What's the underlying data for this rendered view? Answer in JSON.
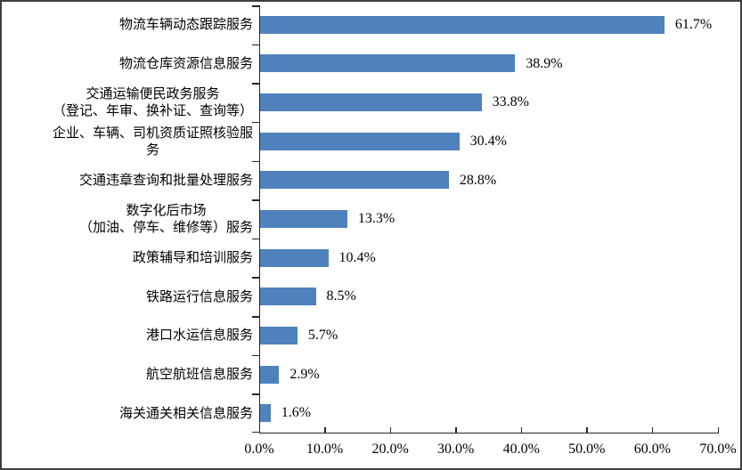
{
  "chart_data": {
    "type": "bar",
    "orientation": "horizontal",
    "title": "",
    "categories": [
      "物流车辆动态跟踪服务",
      "物流仓库资源信息服务",
      "交通运输便民政务服务\n（登记、年审、换补证、查询等）",
      "企业、车辆、司机资质证照核验服\n务",
      "交通违章查询和批量处理服务",
      "数字化后市场\n（加油、停车、维修等）服务",
      "政策辅导和培训服务",
      "铁路运行信息服务",
      "港口水运信息服务",
      "航空航班信息服务",
      "海关通关相关信息服务"
    ],
    "values": [
      61.7,
      38.9,
      33.8,
      30.4,
      28.8,
      13.3,
      10.4,
      8.5,
      5.7,
      2.9,
      1.6
    ],
    "value_labels": [
      "61.7%",
      "38.9%",
      "33.8%",
      "30.4%",
      "28.8%",
      "13.3%",
      "10.4%",
      "8.5%",
      "5.7%",
      "2.9%",
      "1.6%"
    ],
    "x_tick_labels": [
      "0.0%",
      "10.0%",
      "20.0%",
      "30.0%",
      "40.0%",
      "50.0%",
      "60.0%",
      "70.0%"
    ],
    "xlim": [
      0,
      70
    ],
    "grid": false,
    "legend": false,
    "colors": {
      "bar": "#4F81BD",
      "axis": "#262626",
      "text": "#000000",
      "frame_border": "#404040",
      "background": "#FFFFFF"
    }
  }
}
